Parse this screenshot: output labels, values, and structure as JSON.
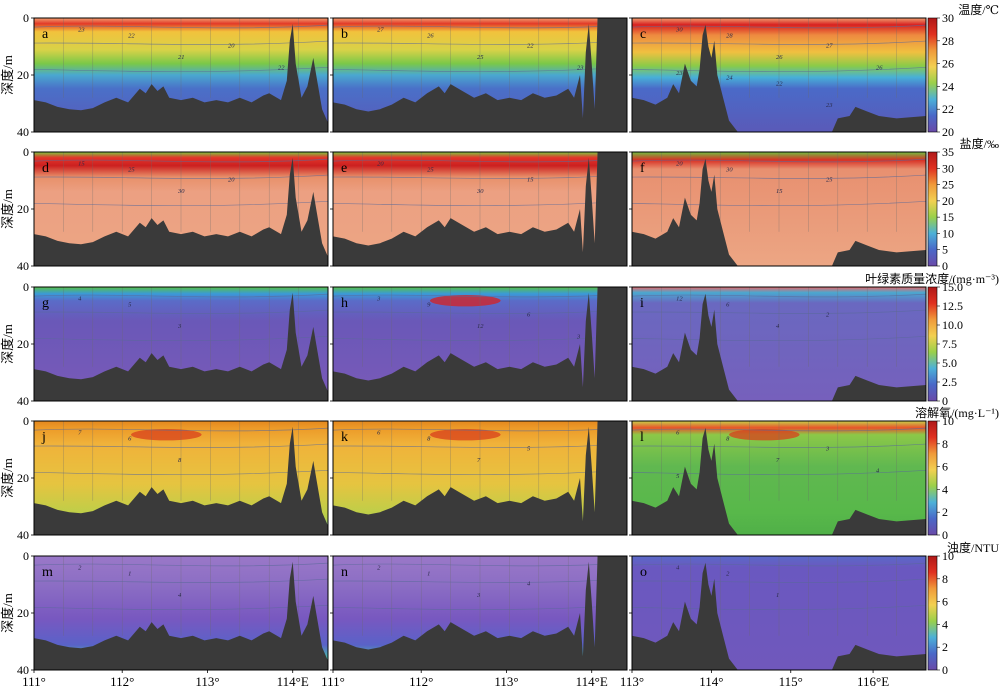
{
  "figure": {
    "ylabel": "深度/m",
    "x_ticks_left": [
      "111°",
      "112°",
      "113°",
      "114°E"
    ],
    "x_ticks_right": [
      "113°",
      "114°",
      "115°",
      "116°E"
    ],
    "y_ticks": [
      "0",
      "20",
      "40"
    ]
  },
  "chart_data": [
    {
      "type": "heatmap",
      "variable": "temperature",
      "colorbar_title": "温度/℃",
      "colorbar_ticks": [
        "30",
        "28",
        "26",
        "24",
        "22",
        "20"
      ],
      "zlim": [
        20,
        30
      ],
      "panels": [
        {
          "label": "a",
          "contour_labels": [
            "23",
            "22",
            "21",
            "20",
            "22"
          ]
        },
        {
          "label": "b",
          "contour_labels": [
            "27",
            "26",
            "25",
            "22",
            "23"
          ]
        },
        {
          "label": "c",
          "contour_labels": [
            "30",
            "28",
            "26",
            "27",
            "26",
            "23",
            "24",
            "22",
            "23"
          ]
        }
      ],
      "colors": [
        "#6a4aa8",
        "#4a6ac8",
        "#4ab0d8",
        "#6ec84a",
        "#c8d850",
        "#f0b040",
        "#e04020",
        "#b01818"
      ]
    },
    {
      "type": "heatmap",
      "variable": "salinity",
      "colorbar_title": "盐度/‰",
      "colorbar_ticks": [
        "35",
        "30",
        "25",
        "20",
        "15",
        "10",
        "5",
        "0"
      ],
      "zlim": [
        0,
        35
      ],
      "panels": [
        {
          "label": "d",
          "contour_labels": [
            "15",
            "25",
            "30",
            "20"
          ]
        },
        {
          "label": "e",
          "contour_labels": [
            "20",
            "25",
            "30",
            "15"
          ]
        },
        {
          "label": "f",
          "contour_labels": [
            "20",
            "30",
            "15",
            "25"
          ]
        }
      ]
    },
    {
      "type": "heatmap",
      "variable": "chlorophyll",
      "colorbar_title": "叶绿素质量浓度/(mg·m⁻³)",
      "colorbar_ticks": [
        "15.0",
        "12.5",
        "10.0",
        "7.5",
        "5.0",
        "2.5",
        "0"
      ],
      "zlim": [
        0,
        15
      ],
      "panels": [
        {
          "label": "g",
          "contour_labels": [
            "4",
            "5",
            "3"
          ]
        },
        {
          "label": "h",
          "contour_labels": [
            "3",
            "9",
            "12",
            "6",
            "3"
          ]
        },
        {
          "label": "i",
          "contour_labels": [
            "12",
            "6",
            "4",
            "2"
          ]
        }
      ]
    },
    {
      "type": "heatmap",
      "variable": "dissolved_oxygen",
      "colorbar_title": "溶解氧/(mg·L⁻¹)",
      "colorbar_ticks": [
        "10",
        "8",
        "6",
        "4",
        "2",
        "0"
      ],
      "zlim": [
        0,
        10
      ],
      "panels": [
        {
          "label": "j",
          "contour_labels": [
            "7",
            "6",
            "8"
          ]
        },
        {
          "label": "k",
          "contour_labels": [
            "6",
            "8",
            "7",
            "5"
          ]
        },
        {
          "label": "l",
          "contour_labels": [
            "6",
            "8",
            "7",
            "3",
            "4",
            "5"
          ]
        }
      ]
    },
    {
      "type": "heatmap",
      "variable": "turbidity",
      "colorbar_title": "浊度/NTU",
      "colorbar_ticks": [
        "10",
        "8",
        "6",
        "4",
        "2",
        "0"
      ],
      "zlim": [
        0,
        10
      ],
      "panels": [
        {
          "label": "m",
          "contour_labels": [
            "2",
            "1",
            "4"
          ]
        },
        {
          "label": "n",
          "contour_labels": [
            "2",
            "1",
            "3",
            "4"
          ]
        },
        {
          "label": "o",
          "contour_labels": [
            "4",
            "2",
            "1"
          ]
        }
      ]
    }
  ]
}
